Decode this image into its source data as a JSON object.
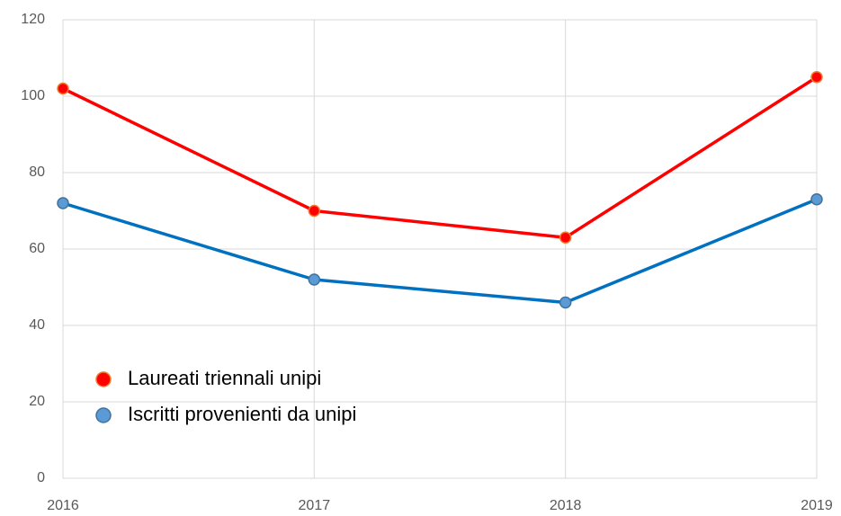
{
  "chart_data": {
    "type": "line",
    "categories": [
      "2016",
      "2017",
      "2018",
      "2019"
    ],
    "series": [
      {
        "name": "Laureati triennali unipi",
        "color": "#ff0000",
        "marker_color": "#ff0000",
        "marker_edge": "#ed7d31",
        "values": [
          102,
          70,
          63,
          105
        ]
      },
      {
        "name": "Iscritti provenienti da unipi",
        "color": "#0070c0",
        "marker_color": "#5b9bd5",
        "marker_edge": "#41719c",
        "values": [
          72,
          52,
          46,
          73
        ]
      }
    ],
    "ylim": [
      0,
      120
    ],
    "yticks": [
      0,
      20,
      40,
      60,
      80,
      100,
      120
    ],
    "grid": true,
    "legend": "lower-left"
  }
}
